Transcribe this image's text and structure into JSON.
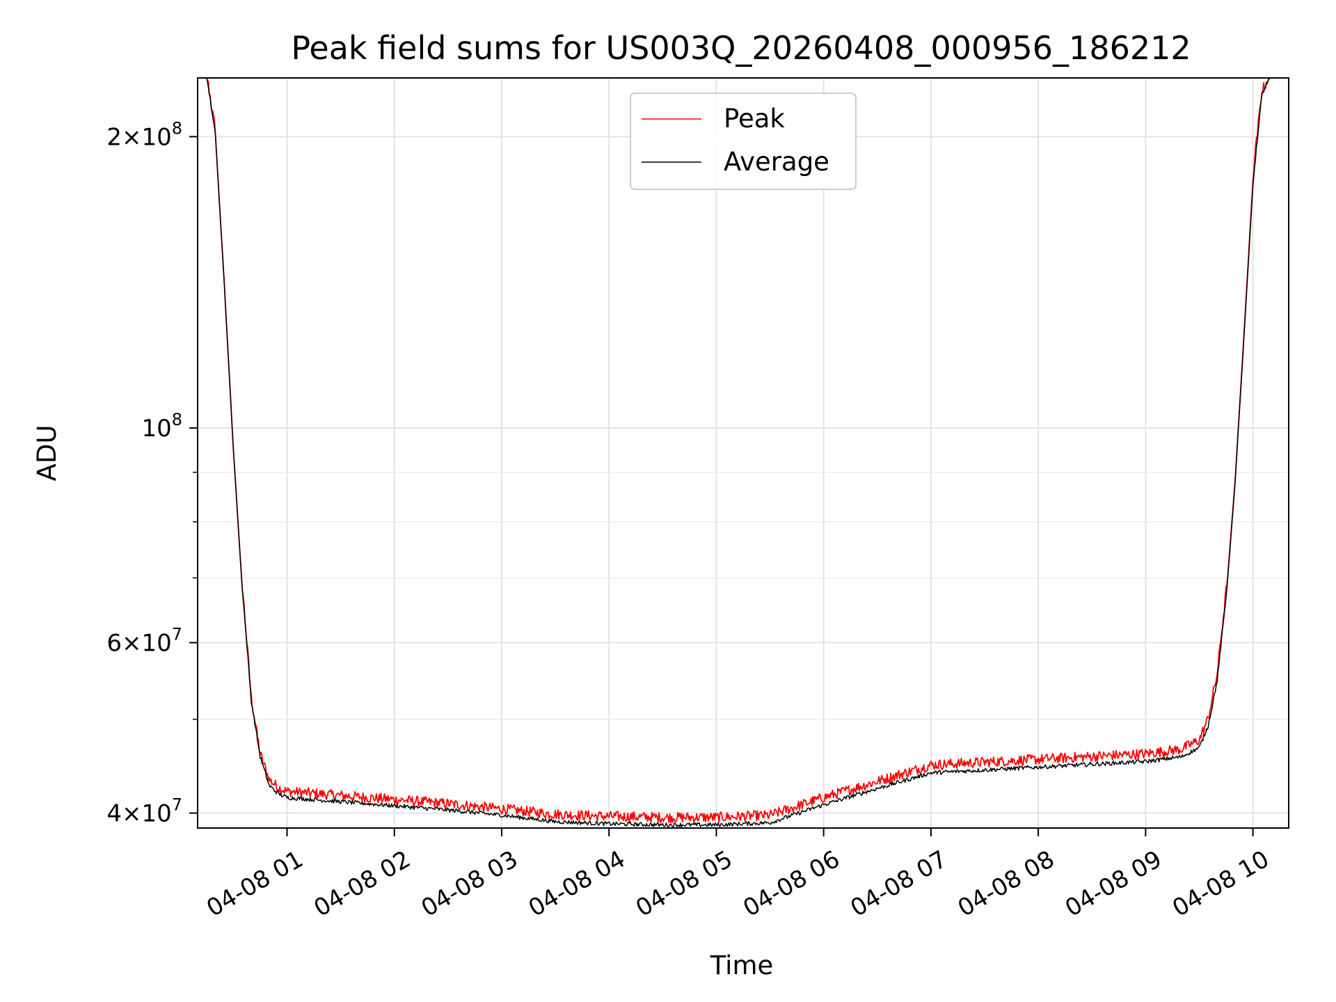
{
  "chart_data": {
    "type": "line",
    "title": "Peak field sums for US003Q_20260408_000956_186212",
    "xlabel": "Time",
    "ylabel": "ADU",
    "y_scale": "log",
    "grid": true,
    "legend_position": "top-center",
    "xlim": [
      "04-08 00:10",
      "04-08 10:20"
    ],
    "ylim": [
      38600000,
      230000000
    ],
    "x_ticks": [
      "04-08 01",
      "04-08 02",
      "04-08 03",
      "04-08 04",
      "04-08 05",
      "04-08 06",
      "04-08 07",
      "04-08 08",
      "04-08 09",
      "04-08 10"
    ],
    "y_ticks": [
      {
        "value": 40000000,
        "base": "4",
        "exp": "7"
      },
      {
        "value": 60000000,
        "base": "6",
        "exp": "7"
      },
      {
        "value": 100000000,
        "base": "",
        "exp": "8"
      },
      {
        "value": 200000000,
        "base": "2",
        "exp": "8"
      }
    ],
    "y_minor_ticks": [
      50000000,
      70000000,
      80000000,
      90000000
    ],
    "x": [
      "04-08 00:10",
      "04-08 00:15",
      "04-08 00:20",
      "04-08 00:25",
      "04-08 00:30",
      "04-08 00:35",
      "04-08 00:40",
      "04-08 00:45",
      "04-08 00:50",
      "04-08 00:55",
      "04-08 01:00",
      "04-08 01:30",
      "04-08 02:00",
      "04-08 02:30",
      "04-08 03:00",
      "04-08 03:30",
      "04-08 04:00",
      "04-08 04:30",
      "04-08 05:00",
      "04-08 05:30",
      "04-08 06:00",
      "04-08 06:30",
      "04-08 07:00",
      "04-08 07:30",
      "04-08 08:00",
      "04-08 08:30",
      "04-08 09:00",
      "04-08 09:20",
      "04-08 09:30",
      "04-08 09:35",
      "04-08 09:40",
      "04-08 09:45",
      "04-08 09:50",
      "04-08 09:55",
      "04-08 10:00",
      "04-08 10:05",
      "04-08 10:10",
      "04-08 10:20"
    ],
    "series": [
      {
        "name": "Peak",
        "color": "#ff0000",
        "noise": 1.5,
        "values": [
          230000000,
          230000000,
          200000000,
          140000000,
          95000000,
          68000000,
          52000000,
          45500000,
          42800000,
          42000000,
          41600000,
          41200000,
          40800000,
          40400000,
          39900000,
          39400000,
          39200000,
          39100000,
          39100000,
          39300000,
          41000000,
          42600000,
          44300000,
          44600000,
          44900000,
          45200000,
          45500000,
          46000000,
          47000000,
          49500000,
          55000000,
          67000000,
          88000000,
          125000000,
          180000000,
          220000000,
          230000000,
          230000000
        ]
      },
      {
        "name": "Average",
        "color": "#000000",
        "noise": 0.6,
        "values": [
          230000000,
          230000000,
          200000000,
          140000000,
          95000000,
          68000000,
          52000000,
          45500000,
          42500000,
          41700000,
          41300000,
          40900000,
          40500000,
          40100000,
          39600000,
          39000000,
          38800000,
          38700000,
          38700000,
          38900000,
          40600000,
          42200000,
          43800000,
          44100000,
          44400000,
          44700000,
          45000000,
          45500000,
          46500000,
          49000000,
          54500000,
          66500000,
          87500000,
          124000000,
          178000000,
          220000000,
          230000000,
          230000000
        ]
      }
    ]
  }
}
